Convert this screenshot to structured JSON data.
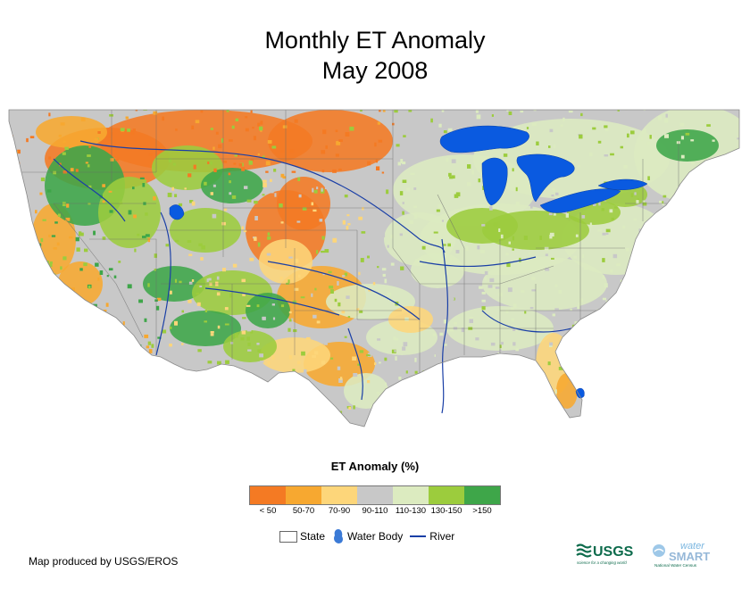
{
  "title": {
    "line1": "Monthly ET Anomaly",
    "line2": "May 2008"
  },
  "map": {
    "colors": {
      "background": "#ffffff",
      "water": "#0a5ae0",
      "river": "#1a3fa6",
      "state_border": "#6b6b6b",
      "land_outside": "#ffffff"
    }
  },
  "legend": {
    "title": "ET Anomaly (%)",
    "classes": [
      {
        "label": "< 50",
        "color": "#f47a23"
      },
      {
        "label": "50-70",
        "color": "#f7a830"
      },
      {
        "label": "70-90",
        "color": "#fdd67a"
      },
      {
        "label": "90-110",
        "color": "#c8c8c8"
      },
      {
        "label": "110-130",
        "color": "#dcebc0"
      },
      {
        "label": "130-150",
        "color": "#9ccc3d"
      },
      {
        "label": ">150",
        "color": "#3ea649"
      }
    ],
    "features": {
      "state": "State",
      "water_body": "Water Body",
      "river": "River"
    }
  },
  "credit": "Map produced by USGS/EROS",
  "logos": {
    "usgs": "USGS",
    "usgs_tagline": "science for a changing world",
    "water": "water",
    "smart": "SMART",
    "census": "National Water Census"
  }
}
